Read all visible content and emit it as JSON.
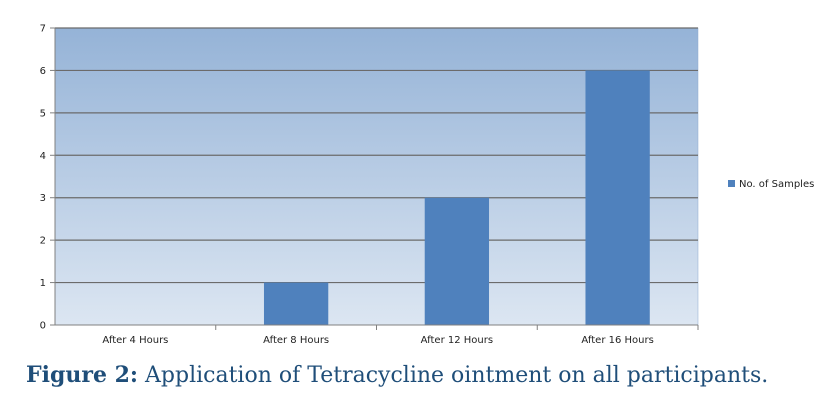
{
  "chart_data": {
    "type": "bar",
    "categories": [
      "After 4 Hours",
      "After 8 Hours",
      "After 12 Hours",
      "After 16 Hours"
    ],
    "series": [
      {
        "name": "No. of Samples",
        "values": [
          0,
          1,
          3,
          6
        ],
        "color": "#4f81bd"
      }
    ],
    "ylim": [
      0,
      7
    ],
    "yticks": [
      0,
      1,
      2,
      3,
      4,
      5,
      6,
      7
    ],
    "grid": true,
    "legend": "right",
    "plot_gradient": {
      "top": "#95b3d7",
      "bottom": "#dce6f2"
    }
  },
  "caption": {
    "label": "Figure 2:",
    "text": " Application of Tetracycline ointment on all participants."
  }
}
